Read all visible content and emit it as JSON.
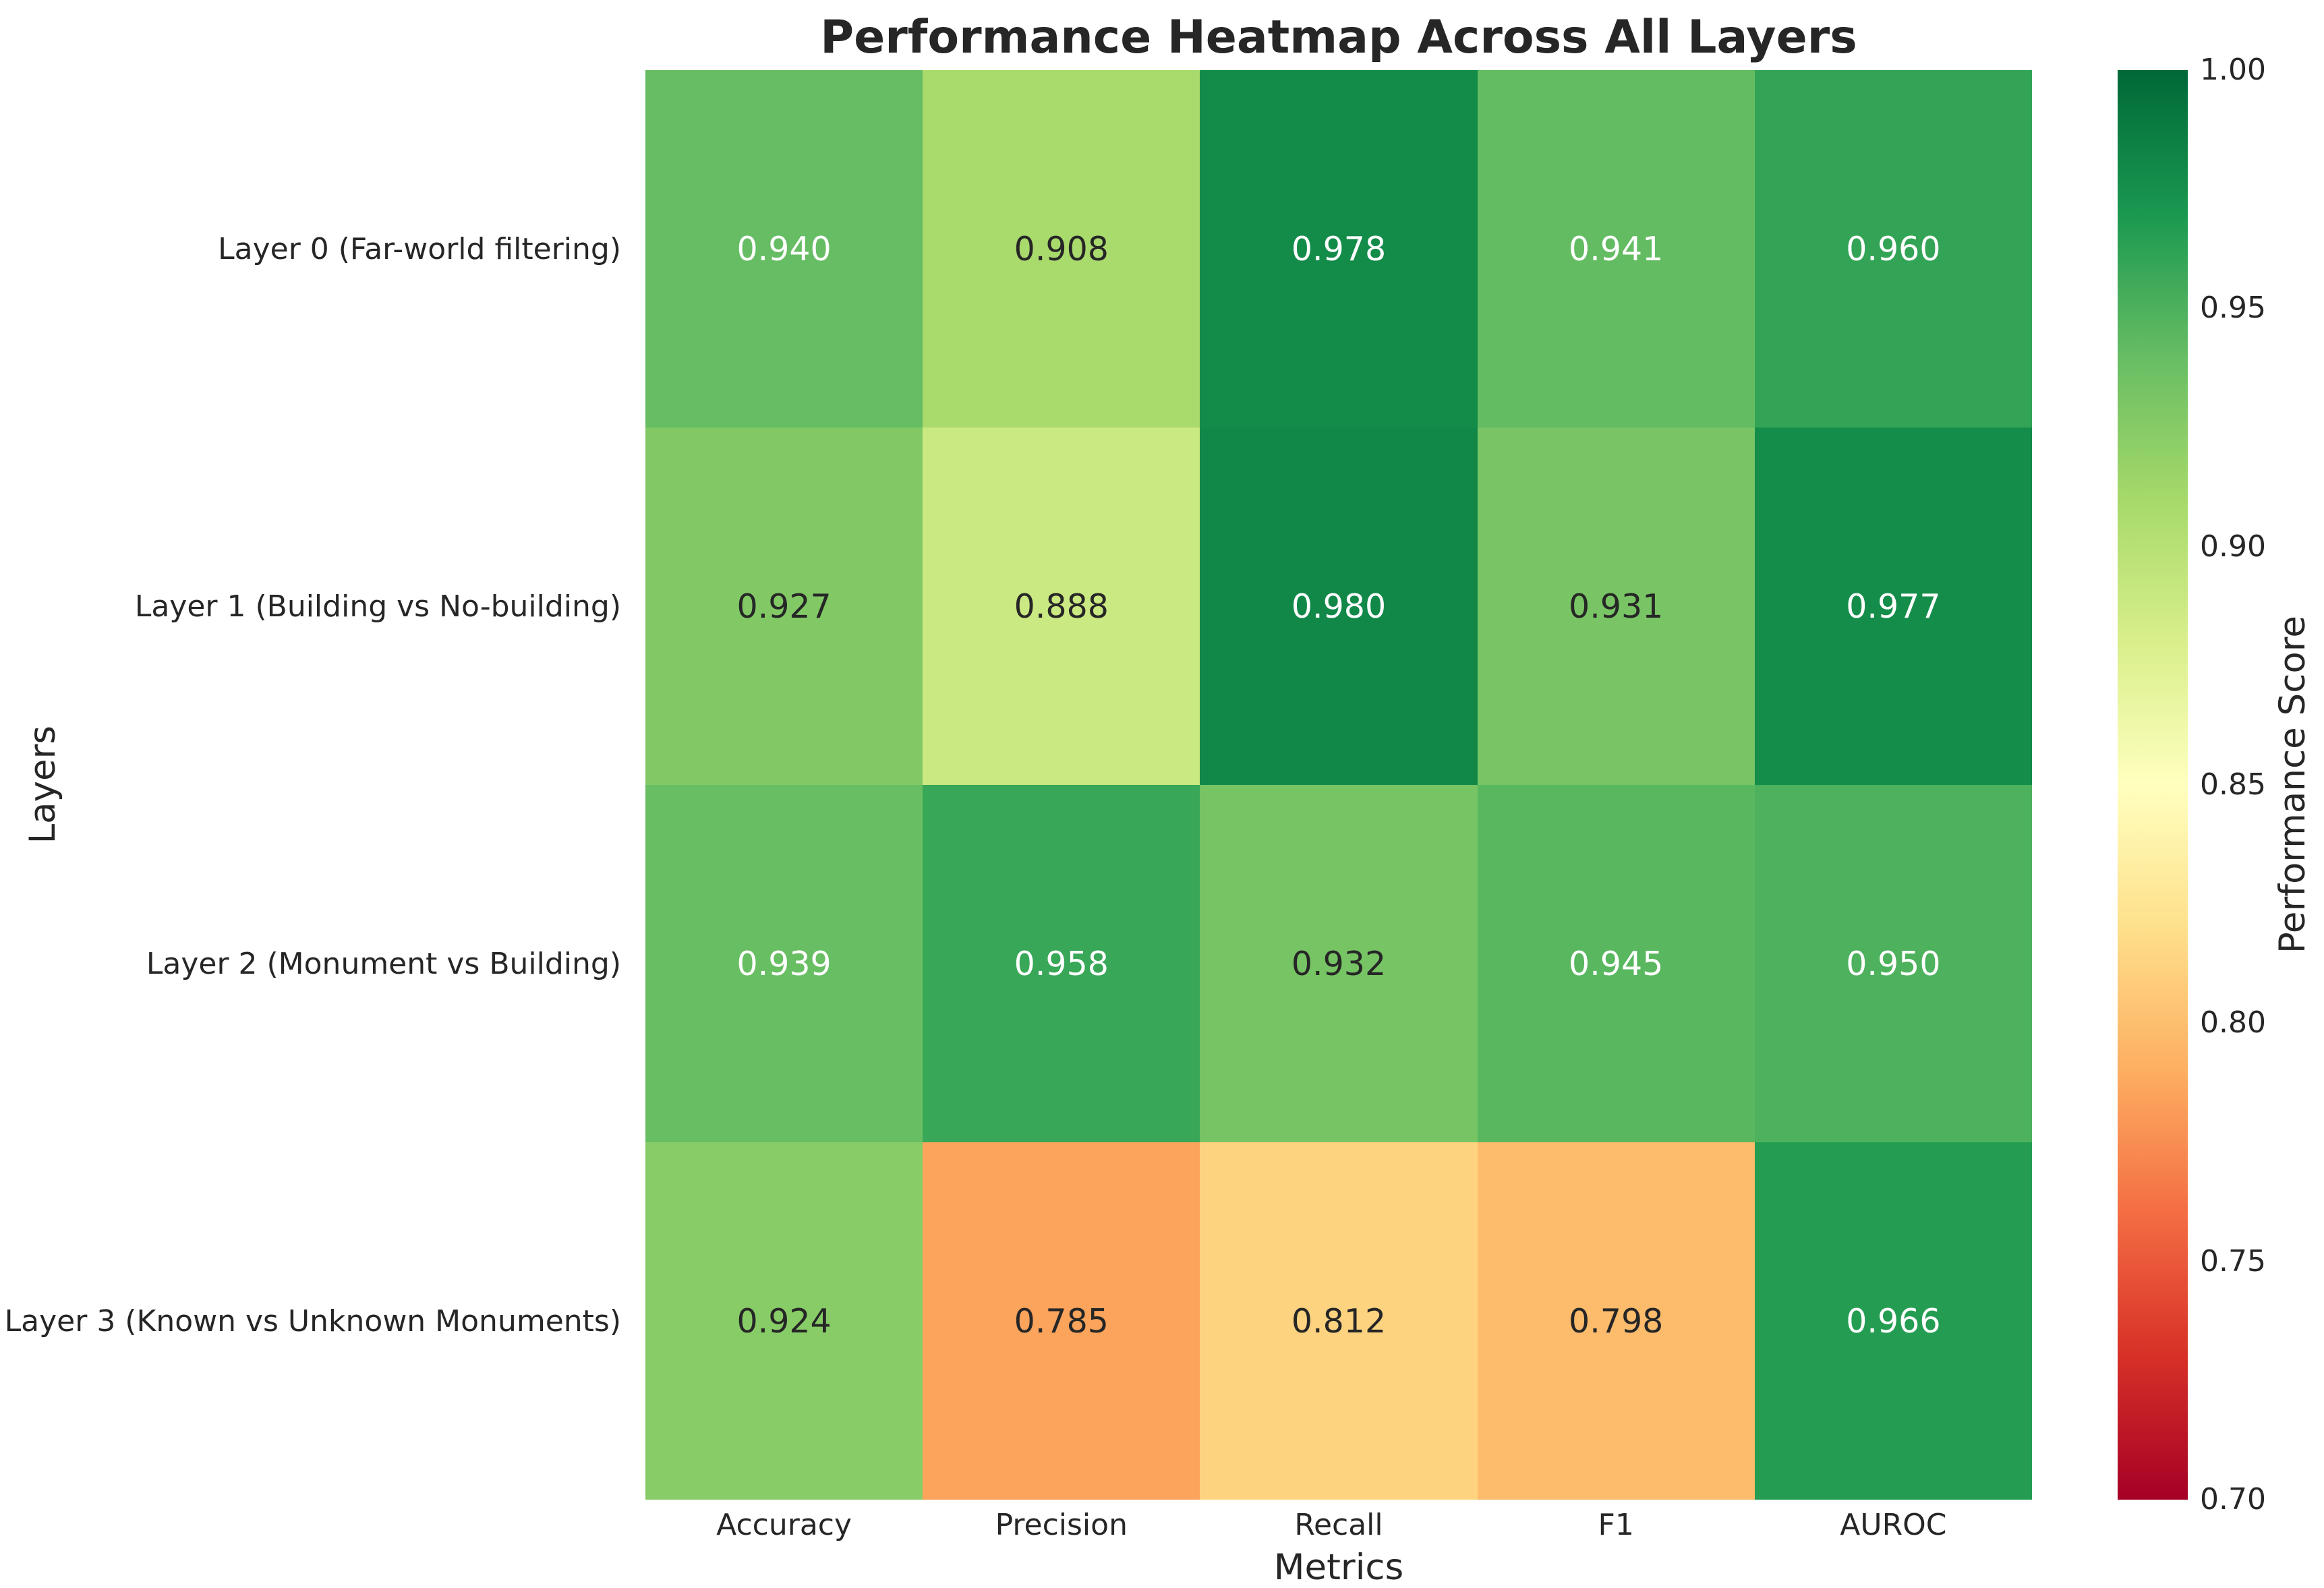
{
  "figure": {
    "background": "#ffffff",
    "text_color": "#262626"
  },
  "chart_data": {
    "type": "heatmap",
    "title": "Performance Heatmap Across All Layers",
    "xlabel": "Metrics",
    "ylabel": "Layers",
    "columns": [
      "Accuracy",
      "Precision",
      "Recall",
      "F1",
      "AUROC"
    ],
    "rows": [
      "Layer 0 (Far-world filtering)",
      "Layer 1 (Building vs No-building)",
      "Layer 2 (Monument vs Building)",
      "Layer 3 (Known vs Unknown Monuments)"
    ],
    "values": [
      [
        0.94,
        0.908,
        0.978,
        0.941,
        0.96
      ],
      [
        0.927,
        0.888,
        0.98,
        0.931,
        0.977
      ],
      [
        0.939,
        0.958,
        0.932,
        0.945,
        0.95
      ],
      [
        0.924,
        0.785,
        0.812,
        0.798,
        0.966
      ]
    ],
    "value_decimals": 3,
    "grid": false,
    "colormap": {
      "name": "RdYlGn",
      "vmin": 0.7,
      "vmax": 1.0,
      "anchors": [
        "#a50026",
        "#d73027",
        "#f46d43",
        "#fdae61",
        "#fee08b",
        "#ffffbf",
        "#d9ef8b",
        "#a6d96a",
        "#66bd63",
        "#1a9850",
        "#006837"
      ]
    },
    "annotation_colors": {
      "light": "#ffffff",
      "dark": "#262626",
      "luminance_threshold": 0.408
    },
    "colorbar": {
      "label": "Performance Score",
      "position": "right",
      "ticks": [
        "1.00",
        "0.95",
        "0.90",
        "0.85",
        "0.80",
        "0.75",
        "0.70"
      ]
    }
  }
}
